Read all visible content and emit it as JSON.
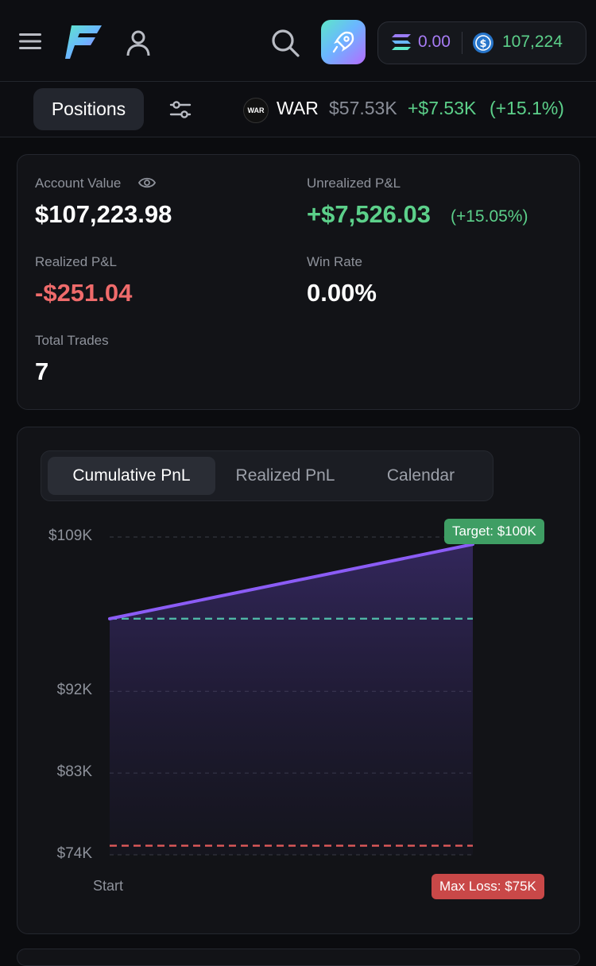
{
  "wallet": {
    "sol_balance": "0.00",
    "usdc_balance": "107,224"
  },
  "position_bar": {
    "tab_label": "Positions",
    "token": {
      "logo_text": "WAR",
      "ticker": "WAR",
      "price": "$57.53K",
      "pnl": "+$7.53K",
      "pnl_pct": "(+15.1%)"
    }
  },
  "stats": {
    "account_value_label": "Account Value",
    "account_value": "$107,223.98",
    "unrealized_label": "Unrealized P&L",
    "unrealized_value": "+$7,526.03",
    "unrealized_pct": "(+15.05%)",
    "realized_label": "Realized P&L",
    "realized_value": "-$251.04",
    "win_rate_label": "Win Rate",
    "win_rate_value": "0.00%",
    "total_trades_label": "Total Trades",
    "total_trades_value": "7"
  },
  "chart_tabs": [
    "Cumulative PnL",
    "Realized PnL",
    "Calendar"
  ],
  "colors": {
    "accent_green": "#5cd08a",
    "loss_red": "#ef6b6b",
    "line_purple": "#8b5cf6",
    "sol_purple": "#a77cf5"
  },
  "chart_data": {
    "type": "area",
    "x": [
      "Start",
      ""
    ],
    "series": [
      {
        "values": [
          100000,
          108200
        ]
      }
    ],
    "y_tick_labels": [
      "$109K",
      "$92K",
      "$83K",
      "$74K"
    ],
    "y_ticks": [
      109000,
      92000,
      83000,
      74000
    ],
    "ylim": [
      74000,
      109000
    ],
    "x_tick_labels": [
      "Start"
    ],
    "annotations": [
      {
        "label": "Target: $100K",
        "y": 100000,
        "style": "dashed-teal"
      },
      {
        "label": "Max Loss: $75K",
        "y": 75000,
        "style": "dashed-red"
      }
    ],
    "grid": true
  }
}
